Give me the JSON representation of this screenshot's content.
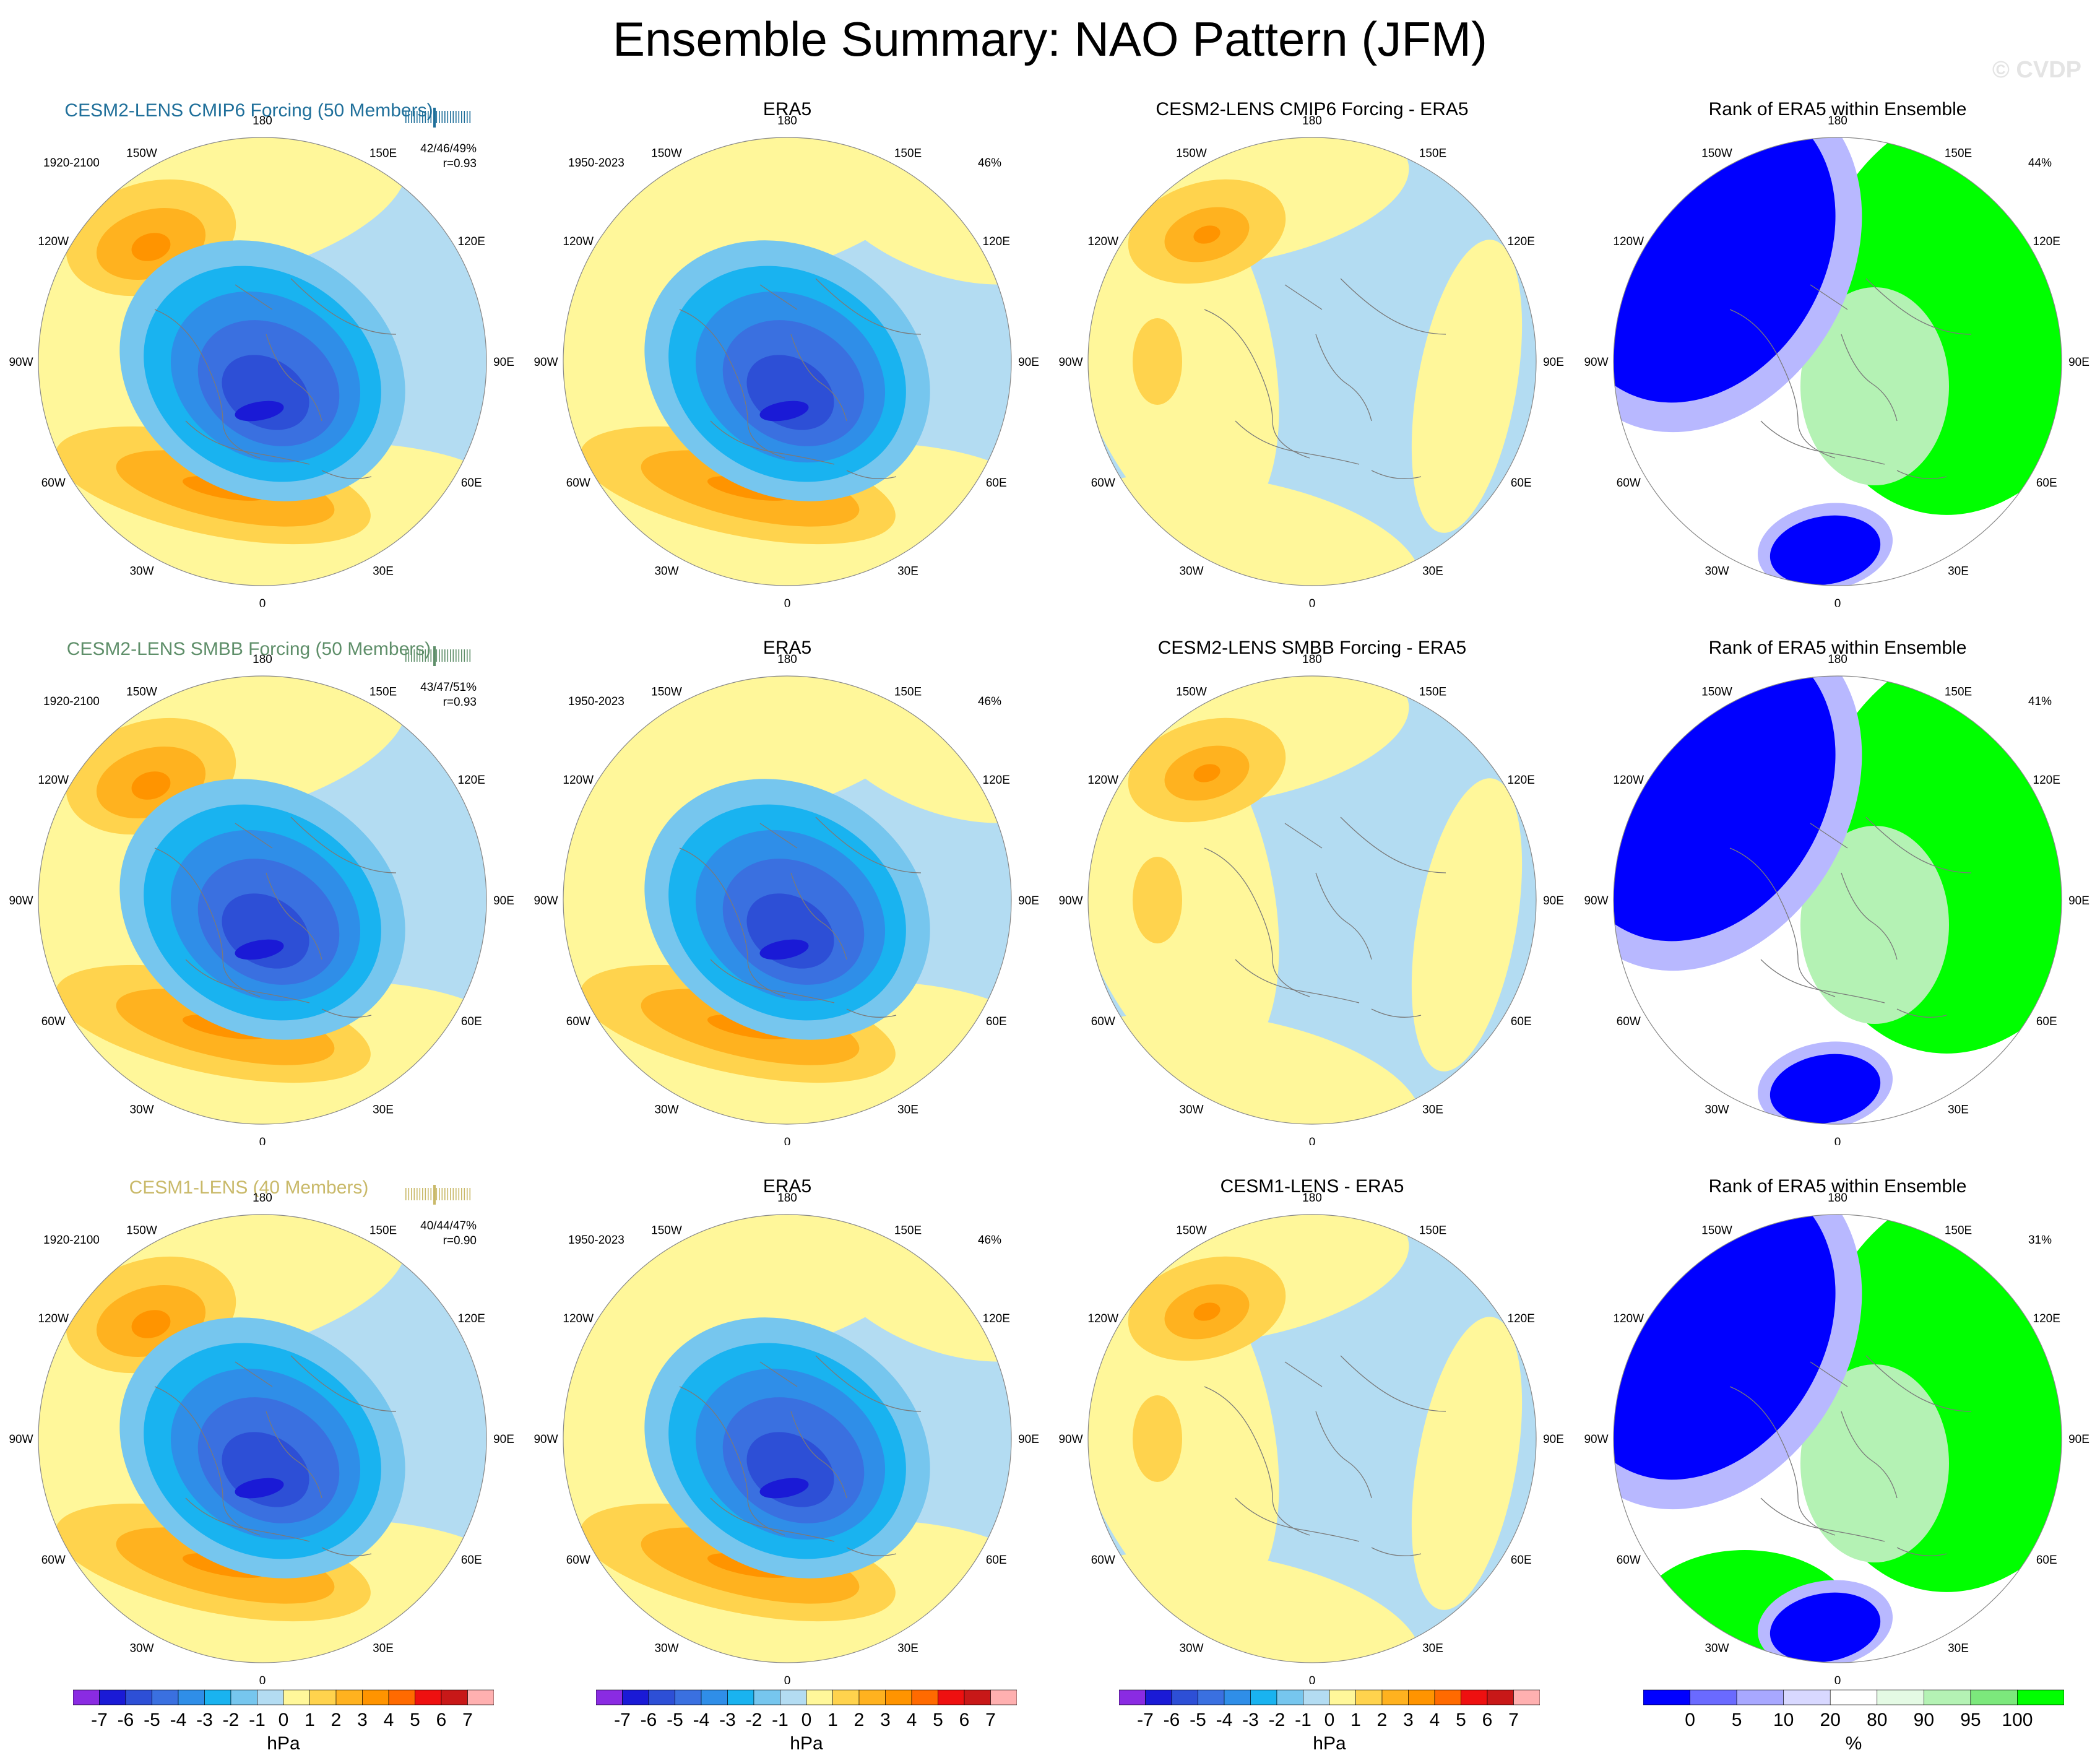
{
  "title": "Ensemble Summary: NAO Pattern (JFM)",
  "credit": "© CVDP",
  "lon_labels": [
    "180",
    "150E",
    "120E",
    "90E",
    "60E",
    "30E",
    "0",
    "30W",
    "60W",
    "90W",
    "120W",
    "150W"
  ],
  "rows": [
    {
      "model": "CESM2-LENS CMIP6 Forcing (50 Members)",
      "model_color": "#1f6f9a",
      "period": "1920-2100",
      "stats": "42/46/49%",
      "corr": "r=0.93",
      "era_period": "1950-2023",
      "era_pct": "46%",
      "diff_title": "CESM2-LENS CMIP6 Forcing - ERA5",
      "rank_pct": "44%"
    },
    {
      "model": "CESM2-LENS SMBB Forcing (50 Members)",
      "model_color": "#5f8f6a",
      "period": "1920-2100",
      "stats": "43/47/51%",
      "corr": "r=0.93",
      "era_period": "1950-2023",
      "era_pct": "46%",
      "diff_title": "CESM2-LENS SMBB Forcing - ERA5",
      "rank_pct": "41%"
    },
    {
      "model": "CESM1-LENS (40 Members)",
      "model_color": "#c9b969",
      "period": "1920-2100",
      "stats": "40/44/47%",
      "corr": "r=0.90",
      "era_period": "1950-2023",
      "era_pct": "46%",
      "diff_title": "CESM1-LENS - ERA5",
      "rank_pct": "31%"
    }
  ],
  "era_title": "ERA5",
  "rank_title": "Rank of ERA5 within Ensemble",
  "chart_data": {
    "type": "heatmap",
    "colorbar_hpa": {
      "ticks": [
        "-7",
        "-6",
        "-5",
        "-4",
        "-3",
        "-2",
        "-1",
        "0",
        "1",
        "2",
        "3",
        "4",
        "5",
        "6",
        "7"
      ],
      "colors": [
        "#8a2be2",
        "#1a1ad6",
        "#2d4fd6",
        "#3a70e0",
        "#2f8ee8",
        "#19b3f0",
        "#76c6ee",
        "#b3dcf2",
        "#fff79a",
        "#ffd34d",
        "#ffb21f",
        "#ff9400",
        "#ff6a00",
        "#ee1010",
        "#c81818",
        "#ffb0b0"
      ],
      "unit": "hPa"
    },
    "colorbar_rank": {
      "ticks": [
        "0",
        "5",
        "10",
        "20",
        "80",
        "90",
        "95",
        "100"
      ],
      "colors": [
        "#0000ff",
        "#6a6aff",
        "#a8a8ff",
        "#d8d8ff",
        "#ffffff",
        "#e4fae4",
        "#b4f2b4",
        "#7ce87c",
        "#00ff00"
      ],
      "unit": "%"
    },
    "fields": {
      "model_nao": "dipole: low over Iceland/Arctic (~-6 hPa), highs over mid-latitude Atlantic and N. Pacific (~+4 hPa)",
      "era5_nao": "dipole: low over Iceland/Arctic (~-6 hPa), high over mid-latitude Atlantic (~+5 hPa)",
      "difference": "model minus ERA5: +2 to +4 hPa over N. Pacific, -1 to 0 elsewhere"
    }
  }
}
